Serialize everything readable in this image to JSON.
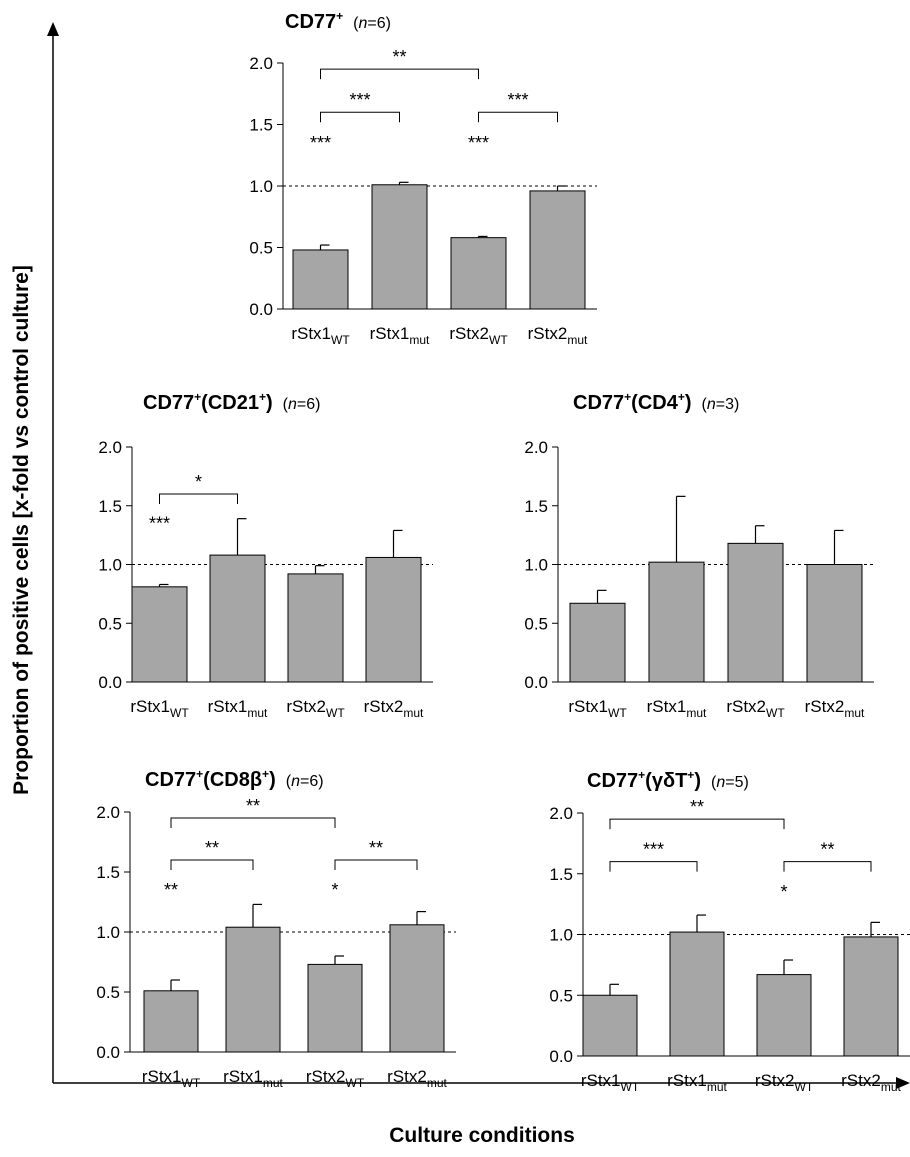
{
  "figure": {
    "ylabel": "Proportion of positive cells [x-fold vs control culture]",
    "xlabel": "Culture conditions"
  },
  "chart_data": [
    {
      "type": "bar",
      "title": "CD77",
      "title_sup": "+",
      "n_label": "(n=6)",
      "categories": [
        {
          "base": "rStx1",
          "sub": "WT"
        },
        {
          "base": "rStx1",
          "sub": "mut"
        },
        {
          "base": "rStx2",
          "sub": "WT"
        },
        {
          "base": "rStx2",
          "sub": "mut"
        }
      ],
      "values": [
        0.48,
        1.01,
        0.58,
        0.96
      ],
      "errors": [
        0.04,
        0.02,
        0.01,
        0.04
      ],
      "yticks": [
        "0.0",
        "0.5",
        "1.0",
        "1.5",
        "2.0"
      ],
      "ylim": [
        0,
        2.0
      ],
      "reference_line": 1.0,
      "bar_color": "#a6a6a6",
      "asterisks": [
        {
          "bar": 0,
          "label": "***"
        },
        {
          "bar": 2,
          "label": "***"
        }
      ],
      "brackets": [
        {
          "from": 0,
          "to": 1,
          "label": "***",
          "level": 1
        },
        {
          "from": 2,
          "to": 3,
          "label": "***",
          "level": 1
        },
        {
          "from": 0,
          "to": 2,
          "label": "**",
          "level": 2
        }
      ]
    },
    {
      "type": "bar",
      "title": "CD77(CD21)",
      "title_parts": [
        {
          "text": "CD77",
          "sup": "+"
        },
        {
          "text": "(CD21",
          "sup": "+"
        },
        {
          "text": ")",
          "sup": ""
        }
      ],
      "n_label": "(n=6)",
      "categories": [
        {
          "base": "rStx1",
          "sub": "WT"
        },
        {
          "base": "rStx1",
          "sub": "mut"
        },
        {
          "base": "rStx2",
          "sub": "WT"
        },
        {
          "base": "rStx2",
          "sub": "mut"
        }
      ],
      "values": [
        0.81,
        1.08,
        0.92,
        1.06
      ],
      "errors": [
        0.02,
        0.31,
        0.07,
        0.23
      ],
      "yticks": [
        "0.0",
        "0.5",
        "1.0",
        "1.5",
        "2.0"
      ],
      "ylim": [
        0,
        2.0
      ],
      "reference_line": 1.0,
      "bar_color": "#a6a6a6",
      "asterisks": [
        {
          "bar": 0,
          "label": "***"
        }
      ],
      "brackets": [
        {
          "from": 0,
          "to": 1,
          "label": "*",
          "level": 1
        }
      ]
    },
    {
      "type": "bar",
      "title": "CD77(CD4)",
      "title_parts": [
        {
          "text": "CD77",
          "sup": "+"
        },
        {
          "text": "(CD4",
          "sup": "+"
        },
        {
          "text": ")",
          "sup": ""
        }
      ],
      "n_label": "(n=3)",
      "categories": [
        {
          "base": "rStx1",
          "sub": "WT"
        },
        {
          "base": "rStx1",
          "sub": "mut"
        },
        {
          "base": "rStx2",
          "sub": "WT"
        },
        {
          "base": "rStx2",
          "sub": "mut"
        }
      ],
      "values": [
        0.67,
        1.02,
        1.18,
        1.0
      ],
      "errors": [
        0.11,
        0.56,
        0.15,
        0.29
      ],
      "yticks": [
        "0.0",
        "0.5",
        "1.0",
        "1.5",
        "2.0"
      ],
      "ylim": [
        0,
        2.0
      ],
      "reference_line": 1.0,
      "bar_color": "#a6a6a6",
      "asterisks": [],
      "brackets": []
    },
    {
      "type": "bar",
      "title": "CD77(CD8β)",
      "title_parts": [
        {
          "text": "CD77",
          "sup": "+"
        },
        {
          "text": "(CD8β",
          "sup": "+"
        },
        {
          "text": ")",
          "sup": ""
        }
      ],
      "n_label": "(n=6)",
      "categories": [
        {
          "base": "rStx1",
          "sub": "WT"
        },
        {
          "base": "rStx1",
          "sub": "mut"
        },
        {
          "base": "rStx2",
          "sub": "WT"
        },
        {
          "base": "rStx2",
          "sub": "mut"
        }
      ],
      "values": [
        0.51,
        1.04,
        0.73,
        1.06
      ],
      "errors": [
        0.09,
        0.19,
        0.07,
        0.11
      ],
      "yticks": [
        "0.0",
        "0.5",
        "1.0",
        "1.5",
        "2.0"
      ],
      "ylim": [
        0,
        2.0
      ],
      "reference_line": 1.0,
      "bar_color": "#a6a6a6",
      "asterisks": [
        {
          "bar": 0,
          "label": "**"
        },
        {
          "bar": 2,
          "label": "*"
        }
      ],
      "brackets": [
        {
          "from": 0,
          "to": 1,
          "label": "**",
          "level": 1
        },
        {
          "from": 2,
          "to": 3,
          "label": "**",
          "level": 1
        },
        {
          "from": 0,
          "to": 2,
          "label": "**",
          "level": 2
        }
      ]
    },
    {
      "type": "bar",
      "title": "CD77(γδT)",
      "title_parts": [
        {
          "text": "CD77",
          "sup": "+"
        },
        {
          "text": "(γδT",
          "sup": "+"
        },
        {
          "text": ")",
          "sup": ""
        }
      ],
      "n_label": "(n=5)",
      "categories": [
        {
          "base": "rStx1",
          "sub": "WT"
        },
        {
          "base": "rStx1",
          "sub": "mut"
        },
        {
          "base": "rStx2",
          "sub": "WT"
        },
        {
          "base": "rStx2",
          "sub": "mut"
        }
      ],
      "values": [
        0.5,
        1.02,
        0.67,
        0.98
      ],
      "errors": [
        0.09,
        0.14,
        0.12,
        0.12
      ],
      "yticks": [
        "0.0",
        "0.5",
        "1.0",
        "1.5",
        "2.0"
      ],
      "ylim": [
        0,
        2.0
      ],
      "reference_line": 1.0,
      "bar_color": "#a6a6a6",
      "asterisks": [
        {
          "bar": 2,
          "label": "*"
        }
      ],
      "brackets": [
        {
          "from": 0,
          "to": 1,
          "label": "***",
          "level": 1
        },
        {
          "from": 2,
          "to": 3,
          "label": "**",
          "level": 1
        },
        {
          "from": 0,
          "to": 2,
          "label": "**",
          "level": 2
        }
      ]
    }
  ]
}
